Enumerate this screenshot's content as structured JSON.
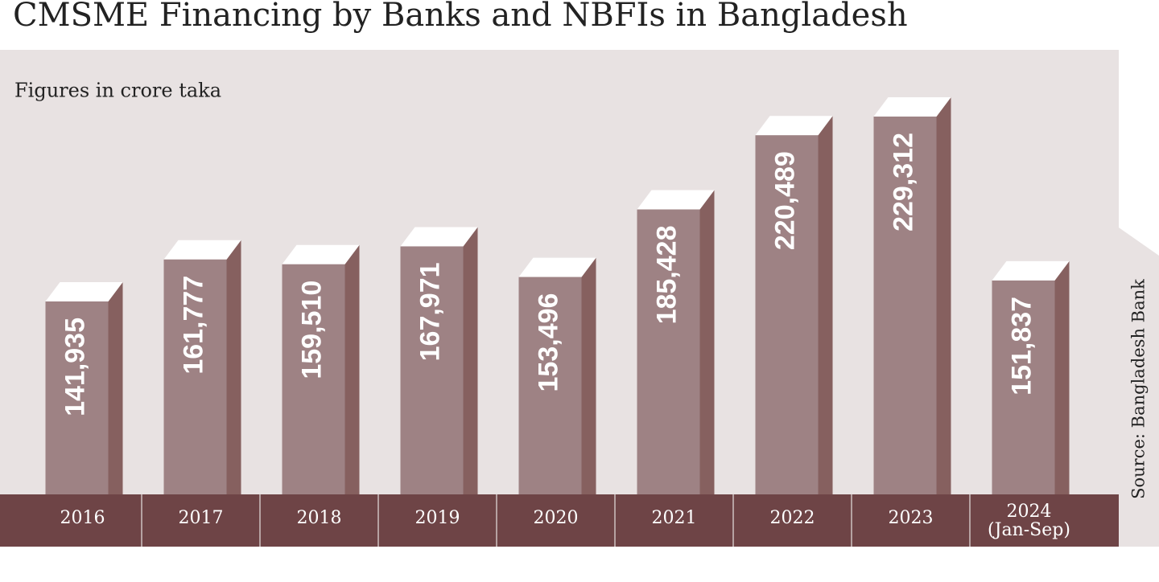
{
  "chart_data": {
    "type": "bar",
    "title": "CMSME Financing by Banks and NBFIs in Bangladesh",
    "subtitle": "Figures in crore taka",
    "source": "Source: Bangladesh Bank",
    "categories": [
      "2016",
      "2017",
      "2018",
      "2019",
      "2020",
      "2021",
      "2022",
      "2023",
      "2024 (Jan-Sep)"
    ],
    "values": [
      141935,
      161777,
      159510,
      167971,
      153496,
      185428,
      220489,
      229312,
      151837
    ],
    "value_labels": [
      "141,935",
      "161,777",
      "159,510",
      "167,971",
      "153,496",
      "185,428",
      "220,489",
      "229,312",
      "151,837"
    ],
    "color": "#9e8284"
  }
}
